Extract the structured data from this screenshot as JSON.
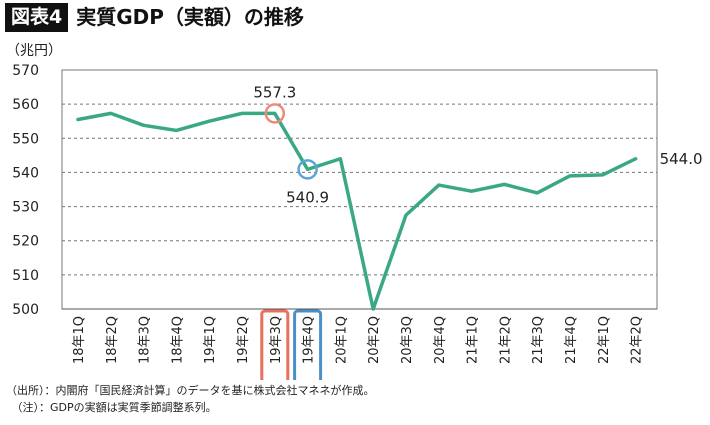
{
  "header": {
    "badge": "図表4",
    "title": "実質GDP（実額）の推移"
  },
  "notes": {
    "source": "（出所）：内閣府「国民経済計算」のデータを基に株式会社マネネが作成。",
    "note": "　（注）：GDPの実額は実質季節調整系列。"
  },
  "chart_data": {
    "type": "line",
    "title": "実質GDP（実額）の推移",
    "ylabel": "（兆円）",
    "xlabel": "",
    "ylim": [
      500,
      570
    ],
    "yticks": [
      500,
      510,
      520,
      530,
      540,
      550,
      560,
      570
    ],
    "grid": "horizontal dashed",
    "categories": [
      "18年1Q",
      "18年2Q",
      "18年3Q",
      "18年4Q",
      "19年1Q",
      "19年2Q",
      "19年3Q",
      "19年4Q",
      "20年1Q",
      "20年2Q",
      "20年3Q",
      "20年4Q",
      "21年1Q",
      "21年2Q",
      "21年3Q",
      "21年4Q",
      "22年1Q",
      "22年2Q"
    ],
    "series": [
      {
        "values": [
          555.5,
          557.3,
          553.8,
          552.3,
          555.0,
          557.3,
          557.3,
          540.9,
          544.0,
          500.0,
          527.5,
          536.3,
          534.5,
          536.5,
          534.0,
          539.0,
          539.3,
          544.0
        ]
      }
    ],
    "line_color": "#3aa887",
    "annotations": [
      {
        "index": 6,
        "label": "557.3",
        "circle_color": "#f08a78"
      },
      {
        "index": 7,
        "label": "540.9",
        "circle_color": "#5aa6d8"
      },
      {
        "index": 17,
        "label": "544.0"
      }
    ],
    "highlight_boxes": [
      {
        "index": 6,
        "color": "#e8705d"
      },
      {
        "index": 7,
        "color": "#4a90c8"
      }
    ]
  }
}
